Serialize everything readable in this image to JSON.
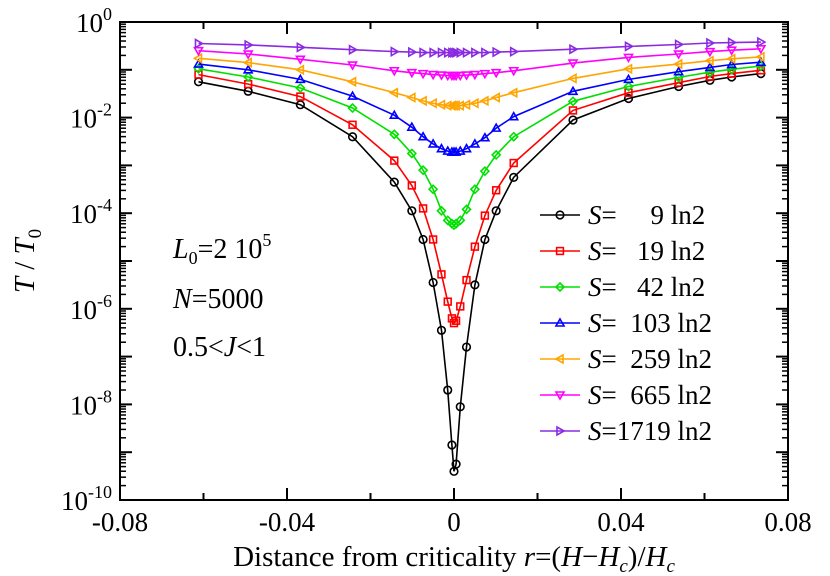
{
  "chart_data": {
    "type": "line",
    "title": "",
    "xlabel": {
      "prefix": "Distance from criticality ",
      "var": "r",
      "eq": "=(",
      "H": "H",
      "minus": "−",
      "Hc": "H",
      "c": "c",
      "close": ")/",
      "Hc2": "H",
      "c2": "c"
    },
    "ylabel": {
      "T": "T",
      "slash": " / ",
      "T0": "T",
      "zero": "0"
    },
    "xlim": [
      -0.08,
      0.08
    ],
    "ylim_log10": [
      -10,
      0
    ],
    "xticks": [
      {
        "value": -0.08,
        "label": "-0.08"
      },
      {
        "value": -0.04,
        "label": "-0.04"
      },
      {
        "value": 0,
        "label": "0"
      },
      {
        "value": 0.04,
        "label": "0.04"
      },
      {
        "value": 0.08,
        "label": "0.08"
      }
    ],
    "yticks": [
      {
        "exp": 0,
        "base": "10",
        "sup": "0"
      },
      {
        "exp": -2,
        "base": "10",
        "sup": "-2"
      },
      {
        "exp": -4,
        "base": "10",
        "sup": "-4"
      },
      {
        "exp": -6,
        "base": "10",
        "sup": "-6"
      },
      {
        "exp": -8,
        "base": "10",
        "sup": "-8"
      },
      {
        "exp": -10,
        "base": "10",
        "sup": "-10"
      }
    ],
    "legend_position": "right",
    "annotations": {
      "L0": {
        "L": "L",
        "sub": "0",
        "rest": "=2 10",
        "sup": "5"
      },
      "N": {
        "N": "N",
        "rest": "=5000"
      },
      "J": {
        "pre": "0.5<",
        "J": "J",
        "post": "<1"
      }
    },
    "x": [
      -0.0612,
      -0.0493,
      -0.0368,
      -0.0243,
      -0.0143,
      -0.0101,
      -0.0074,
      -0.005,
      -0.003,
      -0.0015,
      -0.0005,
      0.0,
      0.0005,
      0.0015,
      0.003,
      0.005,
      0.0074,
      0.0101,
      0.0143,
      0.0285,
      0.0418,
      0.0538,
      0.0613,
      0.0665,
      0.0735
    ],
    "series": [
      {
        "name": "S=9 ln2",
        "label_S": "S",
        "label_rest": "=     9 ln2",
        "color": "#000000",
        "marker": "circle",
        "log10_values": [
          -1.25,
          -1.45,
          -1.73,
          -2.4,
          -3.35,
          -3.95,
          -4.55,
          -5.45,
          -6.45,
          -7.7,
          -8.85,
          -9.4,
          -9.25,
          -8.05,
          -6.8,
          -5.5,
          -4.55,
          -3.95,
          -3.25,
          -2.05,
          -1.6,
          -1.35,
          -1.22,
          -1.15,
          -1.08
        ]
      },
      {
        "name": "S=19 ln2",
        "label_S": "S",
        "label_rest": "=   19 ln2",
        "color": "#ff0000",
        "marker": "square",
        "log10_values": [
          -1.1,
          -1.3,
          -1.56,
          -2.15,
          -2.9,
          -3.42,
          -3.9,
          -4.55,
          -5.28,
          -5.85,
          -6.2,
          -6.3,
          -6.25,
          -5.95,
          -5.4,
          -4.7,
          -4.05,
          -3.52,
          -2.95,
          -1.85,
          -1.48,
          -1.27,
          -1.14,
          -1.08,
          -1.01
        ]
      },
      {
        "name": "S=42 ln2",
        "label_S": "S",
        "label_rest": "=   42 ln2",
        "color": "#00e000",
        "marker": "diamond",
        "log10_values": [
          -0.98,
          -1.15,
          -1.38,
          -1.8,
          -2.35,
          -2.75,
          -3.1,
          -3.5,
          -3.95,
          -4.15,
          -4.22,
          -4.25,
          -4.22,
          -4.15,
          -3.92,
          -3.5,
          -3.12,
          -2.78,
          -2.4,
          -1.66,
          -1.35,
          -1.16,
          -1.05,
          -0.99,
          -0.92
        ]
      },
      {
        "name": "S=103 ln2",
        "label_S": "S",
        "label_rest": "=  103 ln2",
        "color": "#0000ff",
        "marker": "triangle-up",
        "log10_values": [
          -0.88,
          -1.0,
          -1.2,
          -1.55,
          -1.95,
          -2.2,
          -2.4,
          -2.55,
          -2.65,
          -2.7,
          -2.72,
          -2.72,
          -2.72,
          -2.7,
          -2.65,
          -2.55,
          -2.42,
          -2.22,
          -1.98,
          -1.45,
          -1.2,
          -1.04,
          -0.95,
          -0.89,
          -0.84
        ]
      },
      {
        "name": "S=259 ln2",
        "label_S": "S",
        "label_rest": "=  259 ln2",
        "color": "#ffa500",
        "marker": "triangle-left",
        "log10_values": [
          -0.76,
          -0.85,
          -1.0,
          -1.25,
          -1.48,
          -1.58,
          -1.65,
          -1.7,
          -1.73,
          -1.75,
          -1.75,
          -1.75,
          -1.75,
          -1.75,
          -1.73,
          -1.7,
          -1.65,
          -1.58,
          -1.48,
          -1.18,
          -0.98,
          -0.88,
          -0.81,
          -0.77,
          -0.73
        ]
      },
      {
        "name": "S=665 ln2",
        "label_S": "S",
        "label_rest": "=  665 ln2",
        "color": "#ff00ff",
        "marker": "triangle-down",
        "log10_values": [
          -0.6,
          -0.67,
          -0.78,
          -0.9,
          -1.02,
          -1.06,
          -1.08,
          -1.1,
          -1.11,
          -1.12,
          -1.12,
          -1.12,
          -1.12,
          -1.12,
          -1.11,
          -1.1,
          -1.08,
          -1.06,
          -1.02,
          -0.86,
          -0.74,
          -0.67,
          -0.62,
          -0.59,
          -0.56
        ]
      },
      {
        "name": "S=1719 ln2",
        "label_S": "S",
        "label_rest": "=1719 ln2",
        "color": "#8a2be2",
        "marker": "triangle-right",
        "log10_values": [
          -0.45,
          -0.48,
          -0.53,
          -0.58,
          -0.62,
          -0.63,
          -0.64,
          -0.64,
          -0.64,
          -0.64,
          -0.64,
          -0.64,
          -0.64,
          -0.64,
          -0.64,
          -0.64,
          -0.64,
          -0.63,
          -0.62,
          -0.57,
          -0.51,
          -0.47,
          -0.44,
          -0.43,
          -0.42
        ]
      }
    ]
  }
}
